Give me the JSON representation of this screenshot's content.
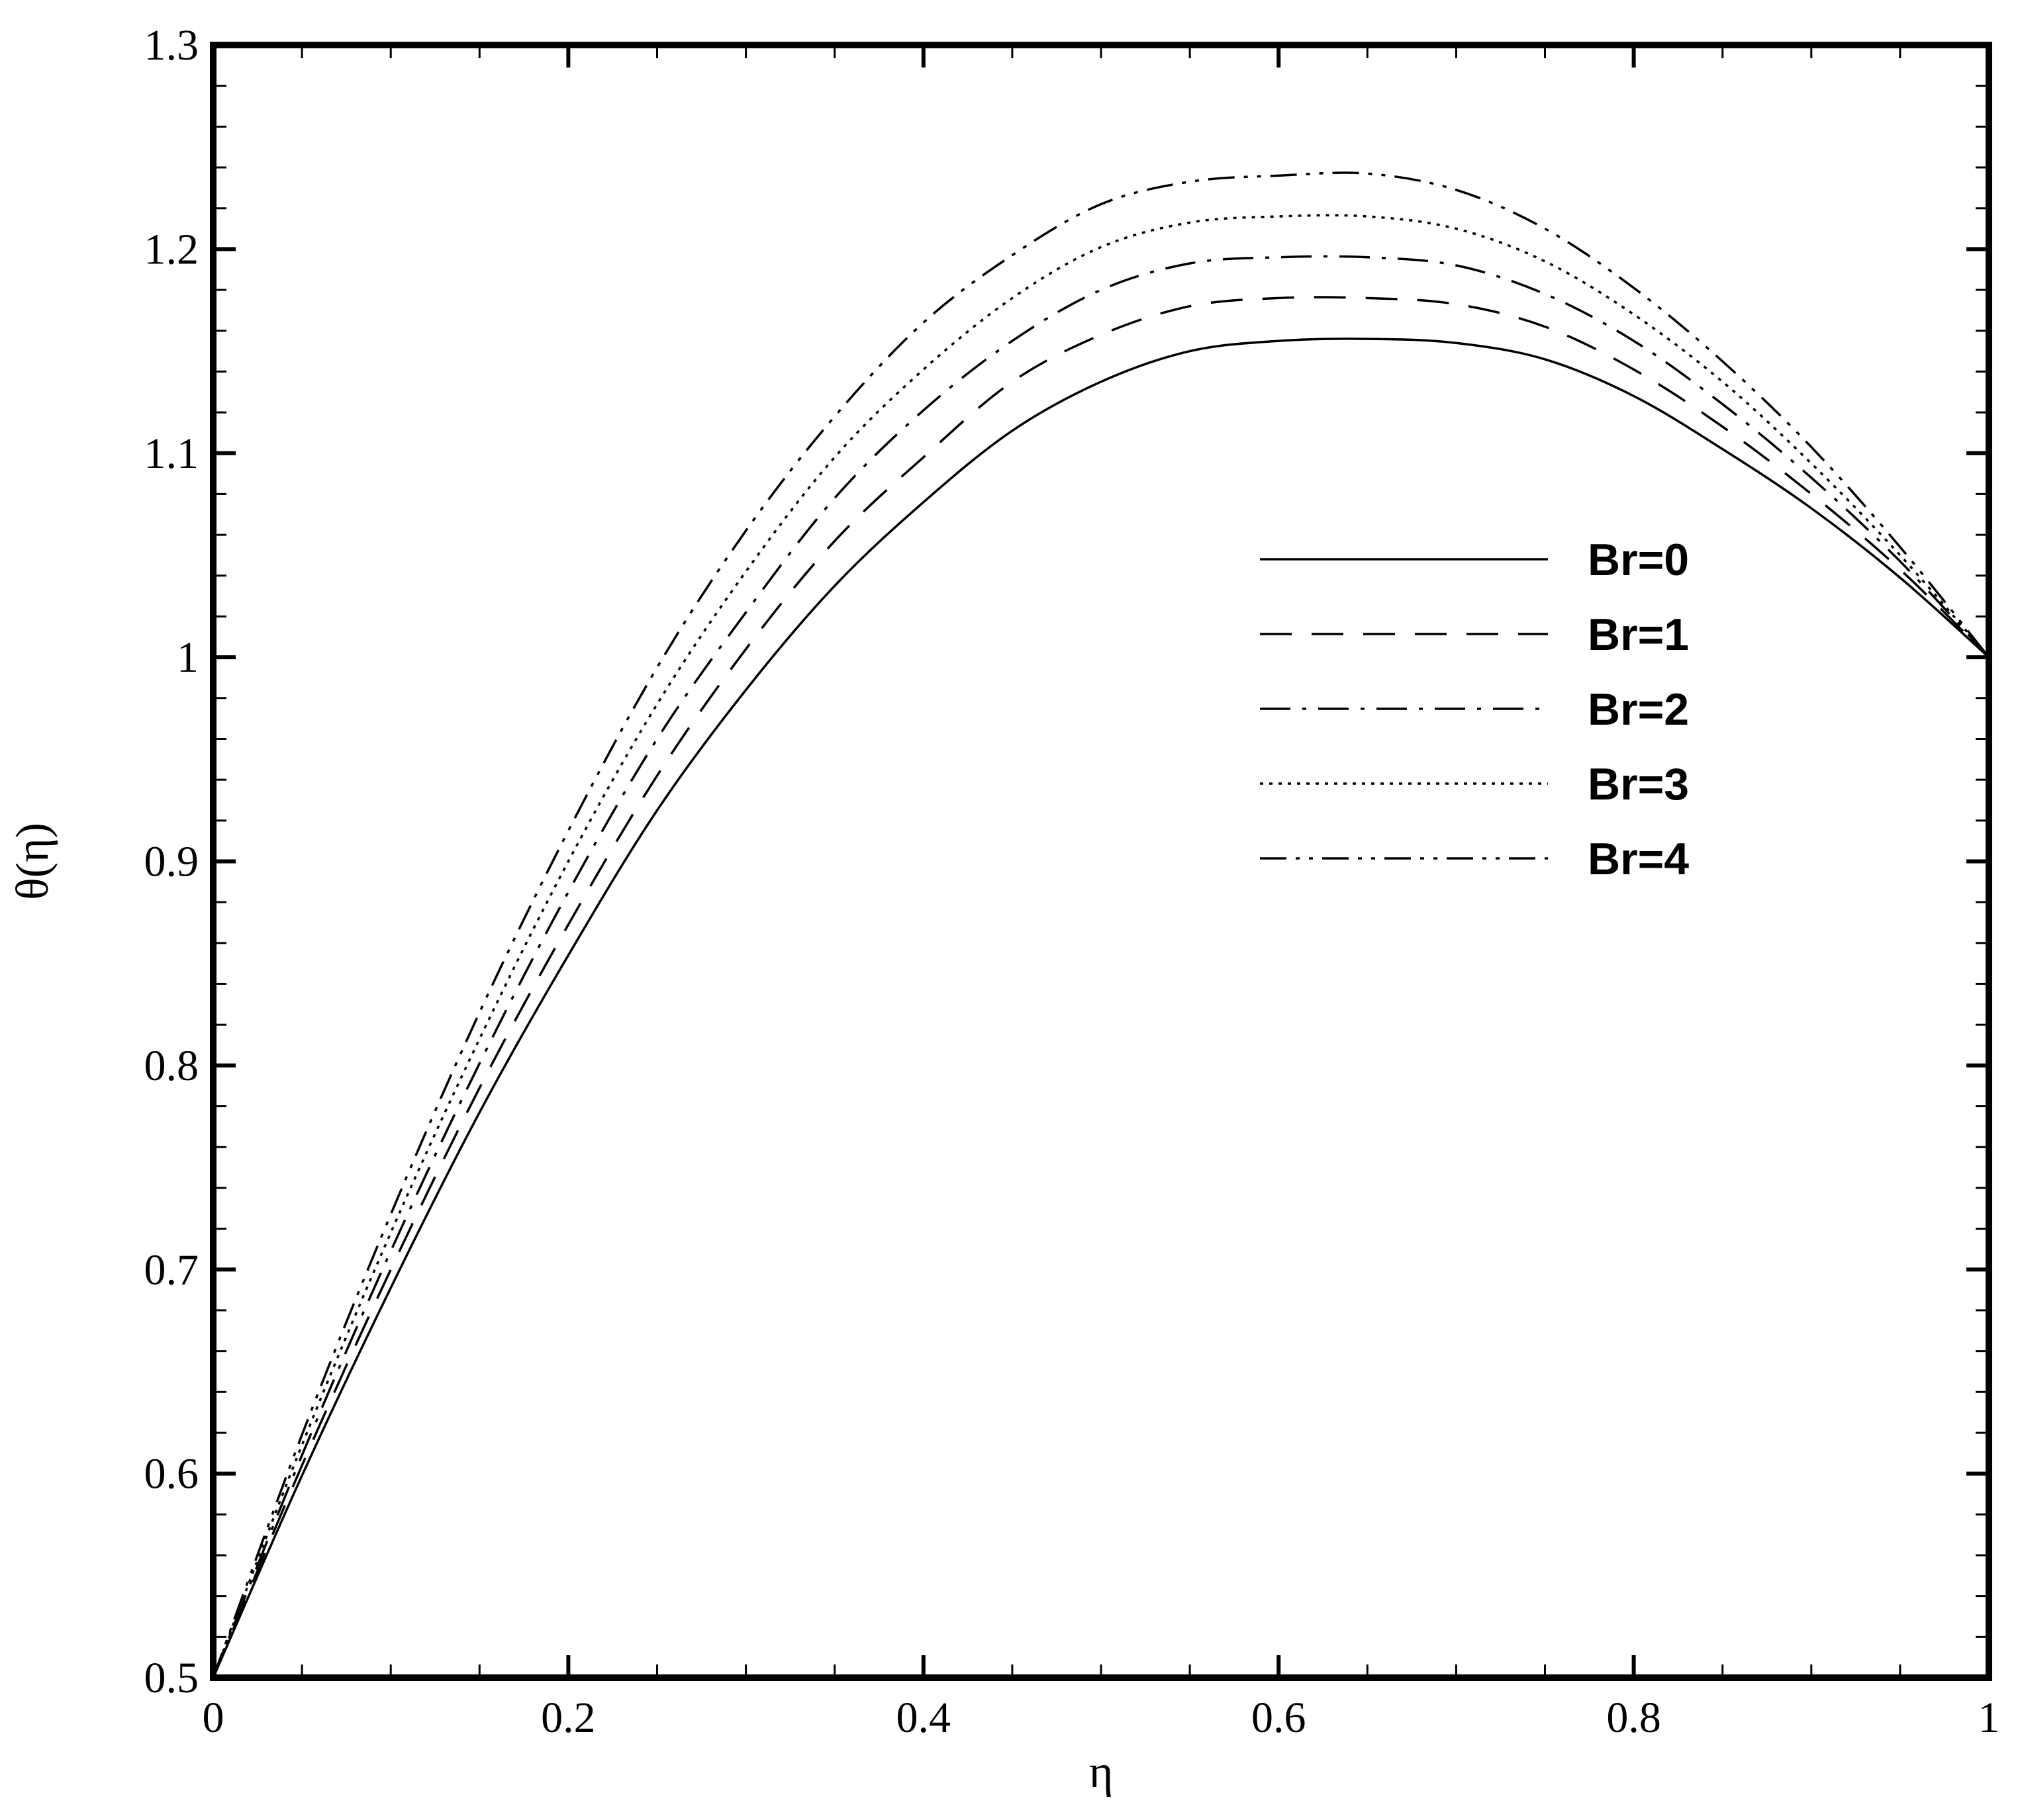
{
  "chart_data": {
    "type": "line",
    "title": "",
    "xlabel": "η",
    "ylabel": "θ(η)",
    "xlim": [
      0,
      1
    ],
    "ylim": [
      0.5,
      1.3
    ],
    "x_ticks": [
      "0",
      "0.2",
      "0.4",
      "0.6",
      "0.8",
      "1"
    ],
    "y_ticks": [
      "0.5",
      "0.6",
      "0.7",
      "0.8",
      "0.9",
      "1",
      "1.1",
      "1.2",
      "1.3"
    ],
    "grid": false,
    "legend_position": "upper-right",
    "x": [
      0,
      0.05,
      0.1,
      0.15,
      0.2,
      0.25,
      0.3,
      0.35,
      0.4,
      0.45,
      0.5,
      0.55,
      0.6,
      0.65,
      0.7,
      0.75,
      0.8,
      0.85,
      0.9,
      0.95,
      1.0
    ],
    "series": [
      {
        "name": "Br=0",
        "style": "solid",
        "values": [
          0.5,
          0.599,
          0.691,
          0.777,
          0.854,
          0.925,
          0.984,
          1.035,
          1.076,
          1.111,
          1.135,
          1.15,
          1.155,
          1.156,
          1.154,
          1.146,
          1.128,
          1.102,
          1.073,
          1.039,
          1.0
        ]
      },
      {
        "name": "Br=1",
        "style": "dashed",
        "values": [
          0.5,
          0.604,
          0.7,
          0.789,
          0.869,
          0.942,
          1.004,
          1.057,
          1.098,
          1.135,
          1.158,
          1.172,
          1.176,
          1.176,
          1.173,
          1.162,
          1.141,
          1.113,
          1.08,
          1.043,
          1.0
        ]
      },
      {
        "name": "Br=2",
        "style": "dashdot",
        "values": [
          0.5,
          0.609,
          0.709,
          0.801,
          0.885,
          0.96,
          1.022,
          1.078,
          1.121,
          1.155,
          1.18,
          1.193,
          1.196,
          1.196,
          1.192,
          1.178,
          1.155,
          1.124,
          1.088,
          1.047,
          1.0
        ]
      },
      {
        "name": "Br=3",
        "style": "dotted",
        "values": [
          0.5,
          0.614,
          0.718,
          0.813,
          0.9,
          0.977,
          1.042,
          1.098,
          1.141,
          1.176,
          1.201,
          1.213,
          1.216,
          1.216,
          1.21,
          1.194,
          1.168,
          1.135,
          1.095,
          1.05,
          1.0
        ]
      },
      {
        "name": "Br=4",
        "style": "dashdotdot",
        "values": [
          0.5,
          0.619,
          0.727,
          0.826,
          0.915,
          0.995,
          1.062,
          1.118,
          1.164,
          1.197,
          1.222,
          1.233,
          1.236,
          1.237,
          1.229,
          1.21,
          1.181,
          1.145,
          1.103,
          1.054,
          1.0
        ]
      }
    ]
  }
}
